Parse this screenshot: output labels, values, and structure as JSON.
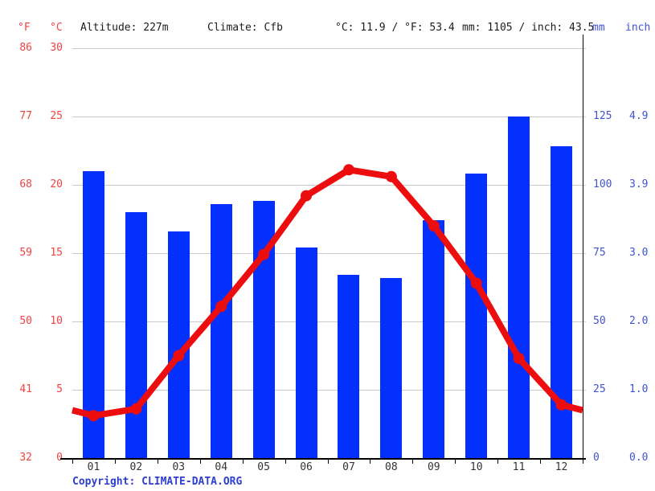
{
  "header": {
    "fahrenheit_unit": "°F",
    "celsius_unit": "°C",
    "altitude": "Altitude: 227m",
    "climate": "Climate: Cfb",
    "temp_summary": "°C: 11.9 / °F: 53.4",
    "precip_summary": "mm: 1105 / inch: 43.5",
    "mm_unit": "mm",
    "inch_unit": "inch"
  },
  "footer": {
    "copyright_prefix": "Copyright: ",
    "copyright_link": "CLIMATE-DATA.ORG"
  },
  "colors": {
    "bar_blue": "#0330fc",
    "line_red": "#ec0e0e",
    "red_text": "#f74040",
    "blue_text": "#4053d2",
    "copyright_blue": "#2d3fd0",
    "grid_gray": "#c9c9c9",
    "axis_black": "#000000",
    "month_gray": "#333333"
  },
  "chart_data": {
    "type": "bar+line",
    "title": "Climate graph (climate-data.org style): monthly precipitation bars and temperature line",
    "categories": [
      "01",
      "02",
      "03",
      "04",
      "05",
      "06",
      "07",
      "08",
      "09",
      "10",
      "11",
      "12"
    ],
    "series": [
      {
        "name": "Precipitation (mm)",
        "type": "bar",
        "values": [
          105,
          90,
          83,
          93,
          94,
          77,
          67,
          66,
          87,
          104,
          125,
          114
        ]
      },
      {
        "name": "Temperature (°C)",
        "type": "line",
        "values": [
          3.1,
          3.6,
          7.5,
          11.1,
          14.9,
          19.2,
          21.1,
          20.6,
          17.0,
          12.8,
          7.3,
          3.9
        ],
        "edge_start": 3.5,
        "edge_end": 3.5
      }
    ],
    "left_axis": {
      "ticks_f": [
        "86",
        "77",
        "68",
        "59",
        "50",
        "41",
        "32"
      ],
      "ticks_c": [
        "30",
        "25",
        "20",
        "15",
        "10",
        "5",
        "0"
      ]
    },
    "right_axis": {
      "ticks_mm": [
        "125",
        "100",
        "75",
        "50",
        "25",
        "0"
      ],
      "ticks_inch": [
        "4.9",
        "3.9",
        "3.0",
        "2.0",
        "1.0",
        "0.0"
      ]
    },
    "ylim_c": [
      0,
      30
    ],
    "ylim_mm": [
      0,
      150
    ],
    "grid": true,
    "legend_position": "none"
  }
}
